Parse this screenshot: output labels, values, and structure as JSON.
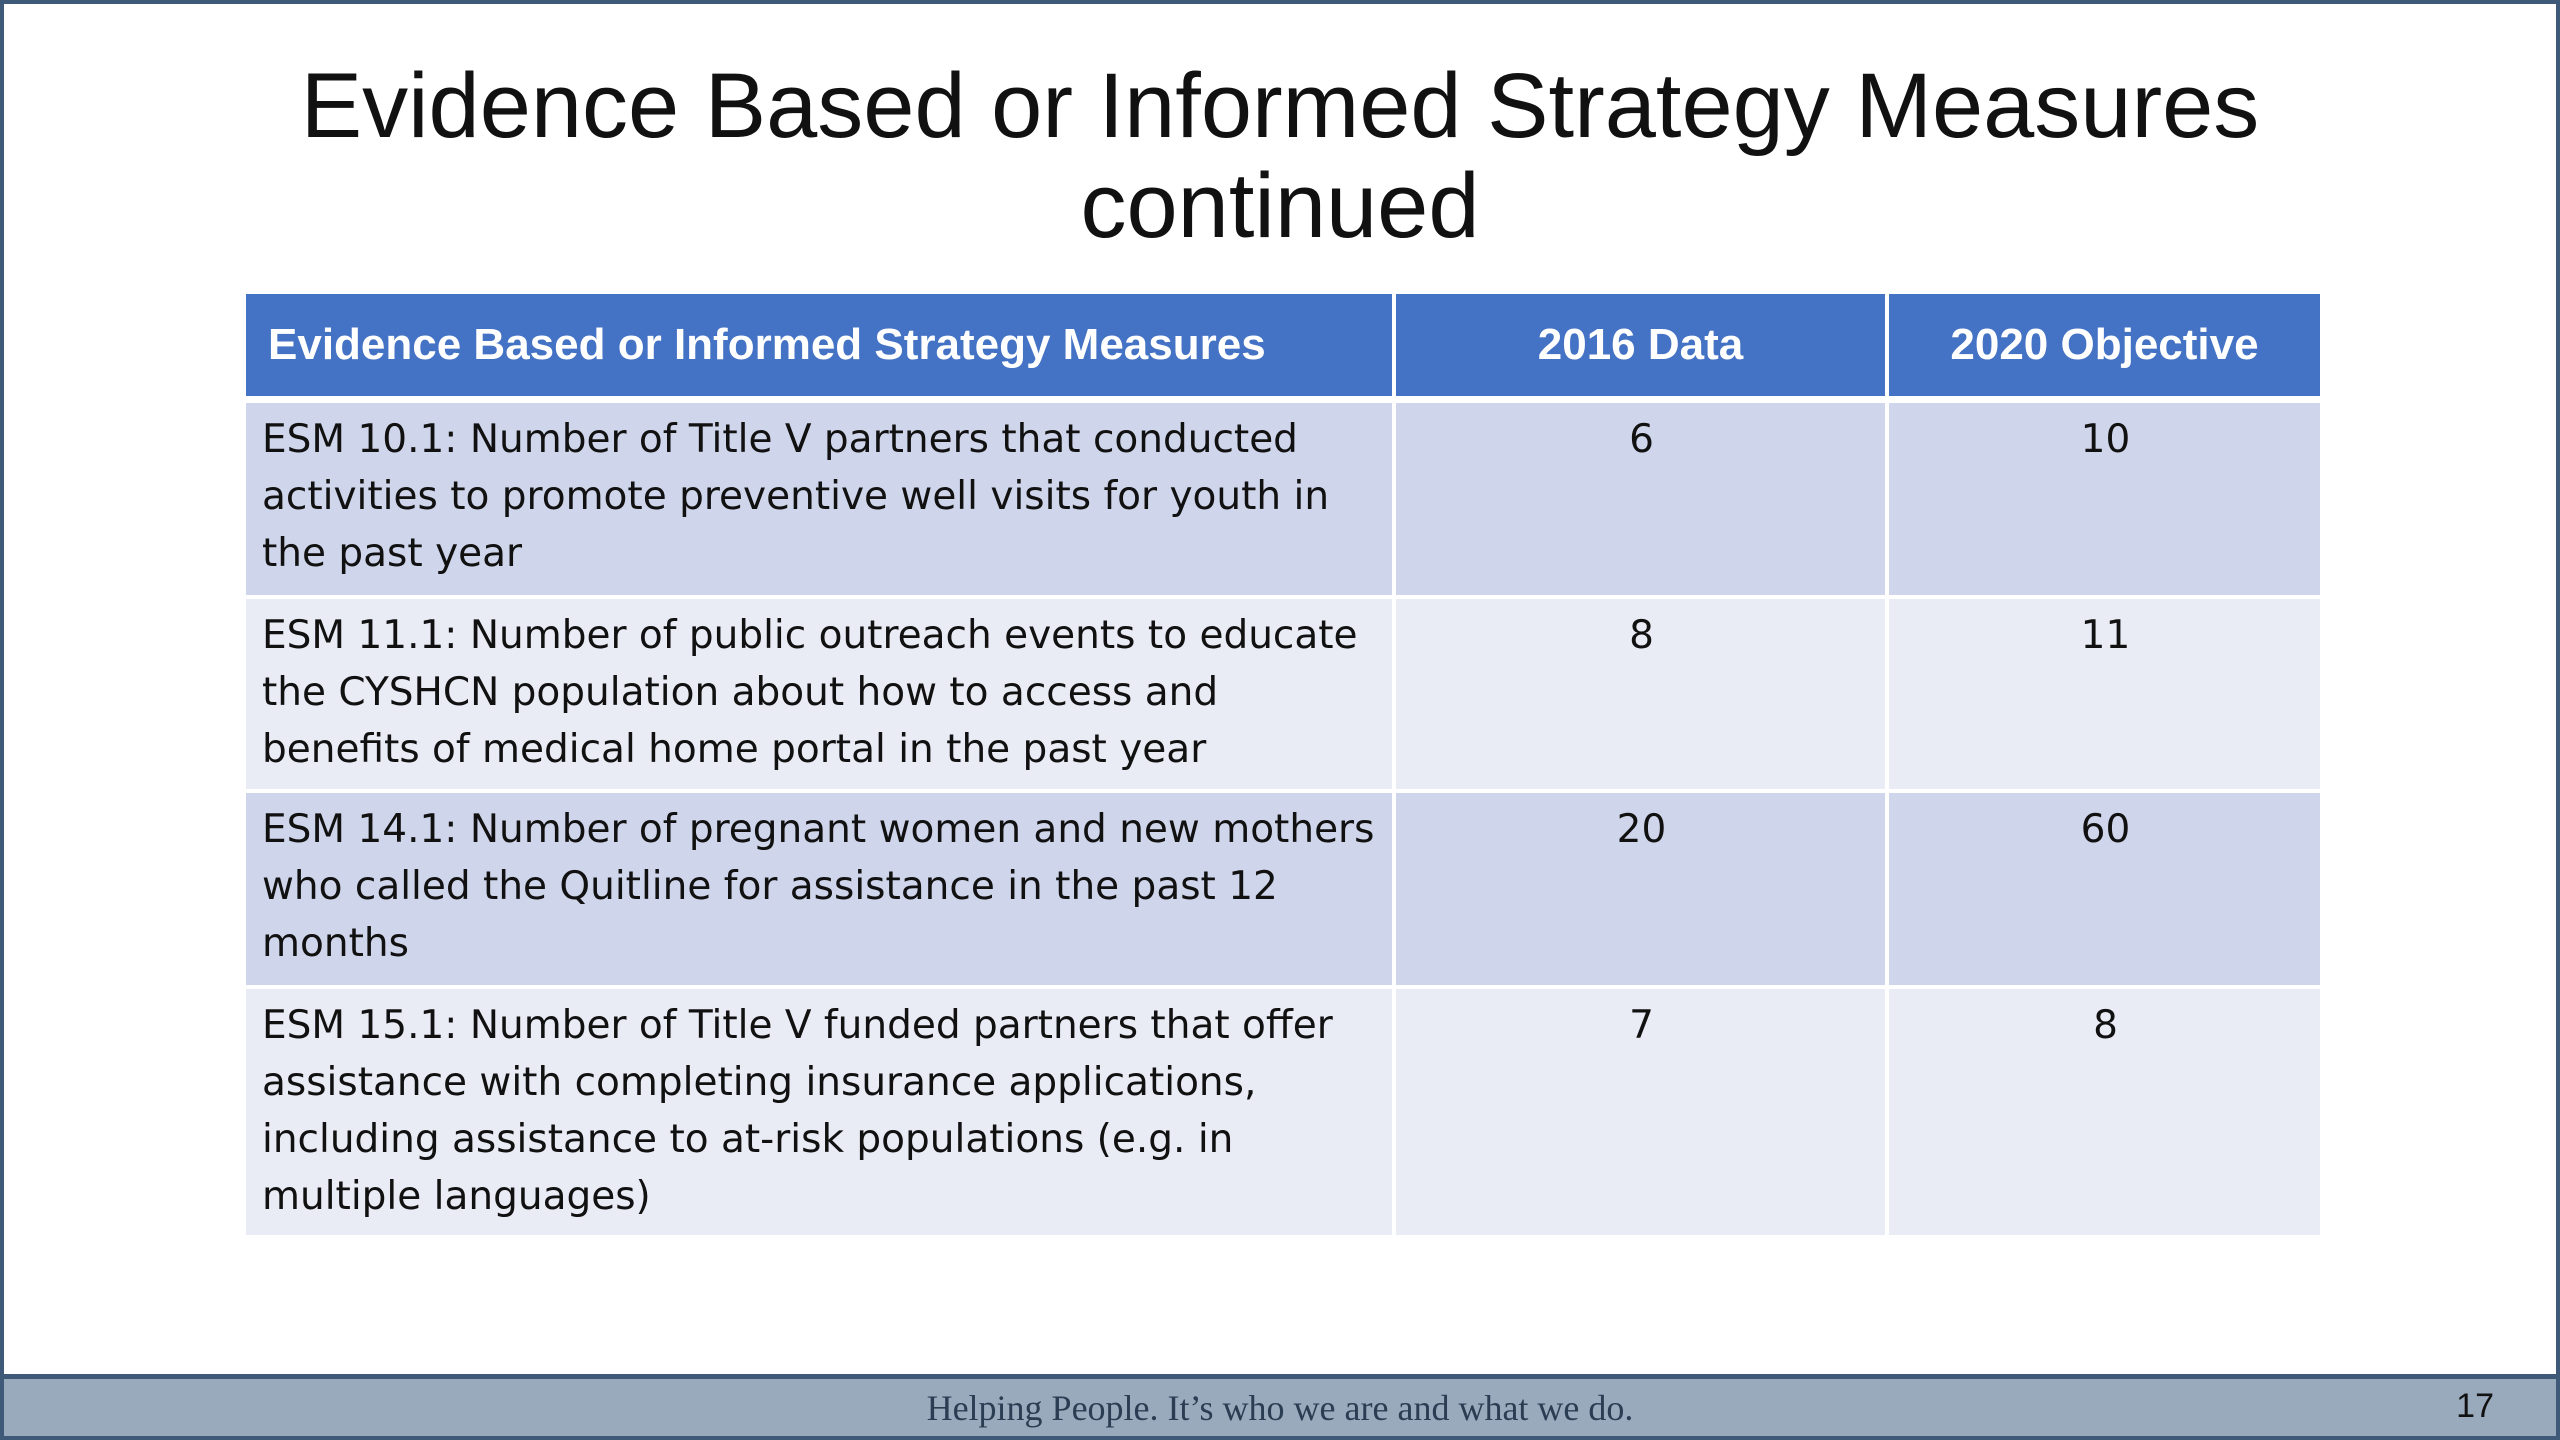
{
  "slide": {
    "title_line1": "Evidence Based or Informed Strategy Measures",
    "title_line2": "continued",
    "page_number": "17",
    "footer_text": "Helping People.  It’s who we are and what we do."
  },
  "table": {
    "headers": {
      "measure": "Evidence Based or Informed Strategy Measures",
      "data_2016": "2016 Data",
      "objective_2020": "2020 Objective"
    },
    "rows": [
      {
        "measure": "ESM 10.1: Number of Title V partners that conducted activities to promote preventive well visits for youth in the past year",
        "data_2016": "6",
        "objective_2020": "10"
      },
      {
        "measure": "ESM 11.1: Number of public outreach events to educate the CYSHCN population about how to access and benefits of medical home portal in the past year",
        "data_2016": "8",
        "objective_2020": "11"
      },
      {
        "measure": "ESM 14.1: Number of pregnant women and new mothers who called the Quitline for assistance in the past 12 months",
        "data_2016": "20",
        "objective_2020": "60"
      },
      {
        "measure": "ESM 15.1: Number of Title V funded partners that offer assistance with completing insurance applications, including assistance to at-risk populations (e.g. in multiple languages)",
        "data_2016": "7",
        "objective_2020": "8"
      }
    ]
  }
}
